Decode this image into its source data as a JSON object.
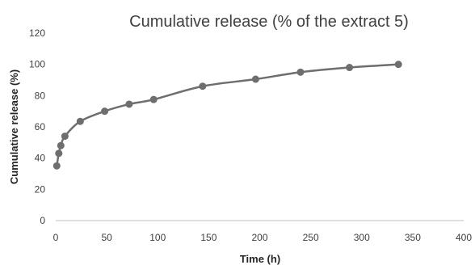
{
  "chart_data": {
    "type": "line",
    "title": "Cumulative release (% of the extract 5)",
    "xlabel": "Time (h)",
    "ylabel": "Cumulative release (%)",
    "xlim": [
      0,
      400
    ],
    "ylim": [
      0,
      120
    ],
    "xticks": [
      0,
      50,
      100,
      150,
      200,
      250,
      300,
      350,
      400
    ],
    "yticks": [
      0,
      20,
      40,
      60,
      80,
      100,
      120
    ],
    "grid": false,
    "legend": "none",
    "series": [
      {
        "x": [
          1,
          3,
          5,
          9,
          24,
          48,
          72,
          96,
          144,
          196,
          240,
          288,
          336
        ],
        "y": [
          35,
          43,
          48,
          54,
          63.5,
          70,
          74.5,
          77.5,
          86,
          90.5,
          95,
          98,
          100
        ],
        "color": "#6e6e6e"
      }
    ]
  }
}
